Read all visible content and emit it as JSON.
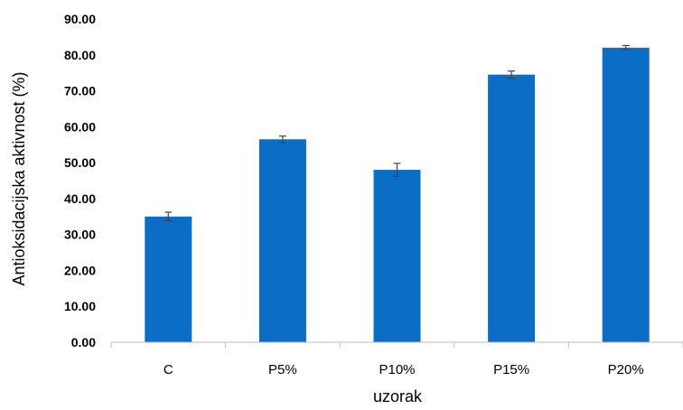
{
  "chart_data": {
    "type": "bar",
    "title": "",
    "xlabel": "uzorak",
    "ylabel": "Antioksidacijska aktivnost (%)",
    "categories": [
      "C",
      "P5%",
      "P10%",
      "P15%",
      "P20%"
    ],
    "values": [
      35.0,
      56.5,
      48.0,
      74.5,
      82.0
    ],
    "errors": [
      1.2,
      0.9,
      1.8,
      1.0,
      0.6
    ],
    "ylim": [
      0,
      90
    ],
    "yticks": [
      "0.00",
      "10.00",
      "20.00",
      "30.00",
      "40.00",
      "50.00",
      "60.00",
      "70.00",
      "80.00",
      "90.00"
    ],
    "grid": false,
    "legend": "none",
    "bar_color": "#0b6dc5"
  }
}
